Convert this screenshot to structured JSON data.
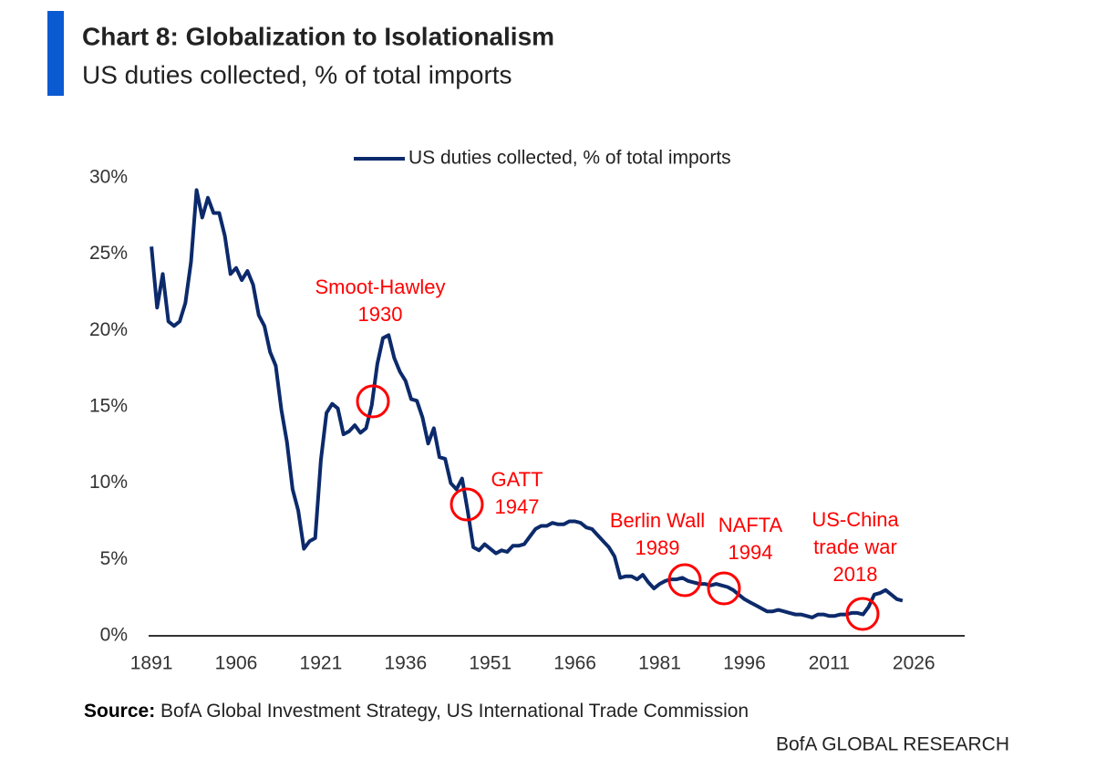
{
  "chart_data": {
    "type": "line",
    "title": "Chart 8: Globalization to Isolationalism",
    "subtitle": "US duties collected, % of total imports",
    "source_label": "Source:",
    "source": "BofA Global Investment Strategy, US International Trade Commission",
    "footer": "BofA GLOBAL RESEARCH",
    "x": [
      1891,
      1892,
      1893,
      1894,
      1895,
      1896,
      1897,
      1898,
      1899,
      1900,
      1901,
      1902,
      1903,
      1904,
      1905,
      1906,
      1907,
      1908,
      1909,
      1910,
      1911,
      1912,
      1913,
      1914,
      1915,
      1916,
      1917,
      1918,
      1919,
      1920,
      1921,
      1922,
      1923,
      1924,
      1925,
      1926,
      1927,
      1928,
      1929,
      1930,
      1931,
      1932,
      1933,
      1934,
      1935,
      1936,
      1937,
      1938,
      1939,
      1940,
      1941,
      1942,
      1943,
      1944,
      1945,
      1946,
      1947,
      1948,
      1949,
      1950,
      1951,
      1952,
      1953,
      1954,
      1955,
      1956,
      1957,
      1958,
      1959,
      1960,
      1961,
      1962,
      1963,
      1964,
      1965,
      1966,
      1967,
      1968,
      1969,
      1970,
      1971,
      1972,
      1973,
      1974,
      1975,
      1976,
      1977,
      1978,
      1979,
      1980,
      1981,
      1982,
      1983,
      1984,
      1985,
      1986,
      1987,
      1988,
      1989,
      1990,
      1991,
      1992,
      1993,
      1994,
      1995,
      1996,
      1997,
      1998,
      1999,
      2000,
      2001,
      2002,
      2003,
      2004,
      2005,
      2006,
      2007,
      2008,
      2009,
      2010,
      2011,
      2012,
      2013,
      2014,
      2015,
      2016,
      2017,
      2018,
      2019,
      2020,
      2021,
      2022,
      2023,
      2024
    ],
    "series": [
      {
        "name": "US duties collected, % of total imports",
        "color": "#0c2a6b",
        "values": [
          25.5,
          21.5,
          23.7,
          20.6,
          20.3,
          20.6,
          21.8,
          24.5,
          29.2,
          27.4,
          28.7,
          27.7,
          27.7,
          26.2,
          23.7,
          24.1,
          23.3,
          23.9,
          23.0,
          21.0,
          20.3,
          18.6,
          17.7,
          14.8,
          12.7,
          9.6,
          8.2,
          5.7,
          6.2,
          6.4,
          11.5,
          14.6,
          15.2,
          14.9,
          13.2,
          13.4,
          13.8,
          13.3,
          13.6,
          15.1,
          17.8,
          19.5,
          19.7,
          18.2,
          17.3,
          16.7,
          15.5,
          15.4,
          14.3,
          12.6,
          13.6,
          11.7,
          11.6,
          10.0,
          9.6,
          10.3,
          8.2,
          5.8,
          5.6,
          6.0,
          5.7,
          5.4,
          5.6,
          5.5,
          5.9,
          5.9,
          6.0,
          6.5,
          7.0,
          7.2,
          7.2,
          7.4,
          7.3,
          7.3,
          7.5,
          7.5,
          7.4,
          7.1,
          7.0,
          6.6,
          6.2,
          5.8,
          5.2,
          3.8,
          3.9,
          3.9,
          3.7,
          4.0,
          3.5,
          3.1,
          3.4,
          3.6,
          3.7,
          3.7,
          3.8,
          3.6,
          3.5,
          3.4,
          3.4,
          3.3,
          3.4,
          3.3,
          3.2,
          3.0,
          2.7,
          2.4,
          2.2,
          2.0,
          1.8,
          1.6,
          1.6,
          1.7,
          1.6,
          1.5,
          1.4,
          1.4,
          1.3,
          1.2,
          1.4,
          1.4,
          1.3,
          1.3,
          1.4,
          1.4,
          1.5,
          1.5,
          1.4,
          1.9,
          2.7,
          2.8,
          3.0,
          2.7,
          2.4,
          2.3
        ]
      }
    ],
    "xlim": [
      1890.5,
      2035
    ],
    "xticks": [
      1891,
      1906,
      1921,
      1936,
      1951,
      1966,
      1981,
      1996,
      2011,
      2026
    ],
    "ylim": [
      0,
      30
    ],
    "yticks": [
      {
        "value": 0,
        "label": "0%"
      },
      {
        "value": 5,
        "label": "5%"
      },
      {
        "value": 10,
        "label": "10%"
      },
      {
        "value": 15,
        "label": "15%"
      },
      {
        "value": 20,
        "label": "20%"
      },
      {
        "value": 25,
        "label": "25%"
      },
      {
        "value": 30,
        "label": "30%"
      }
    ],
    "legend": "top",
    "grid": false,
    "annotation_color": "#ff0000",
    "annotations": [
      {
        "lines": [
          "Smoot-Hawley",
          "1930"
        ]
      },
      {
        "lines": [
          "GATT",
          "1947"
        ]
      },
      {
        "lines": [
          "Berlin Wall",
          "1989"
        ]
      },
      {
        "lines": [
          "NAFTA",
          "1994"
        ]
      },
      {
        "lines": [
          "US-China",
          "trade war",
          "2018"
        ]
      }
    ]
  }
}
